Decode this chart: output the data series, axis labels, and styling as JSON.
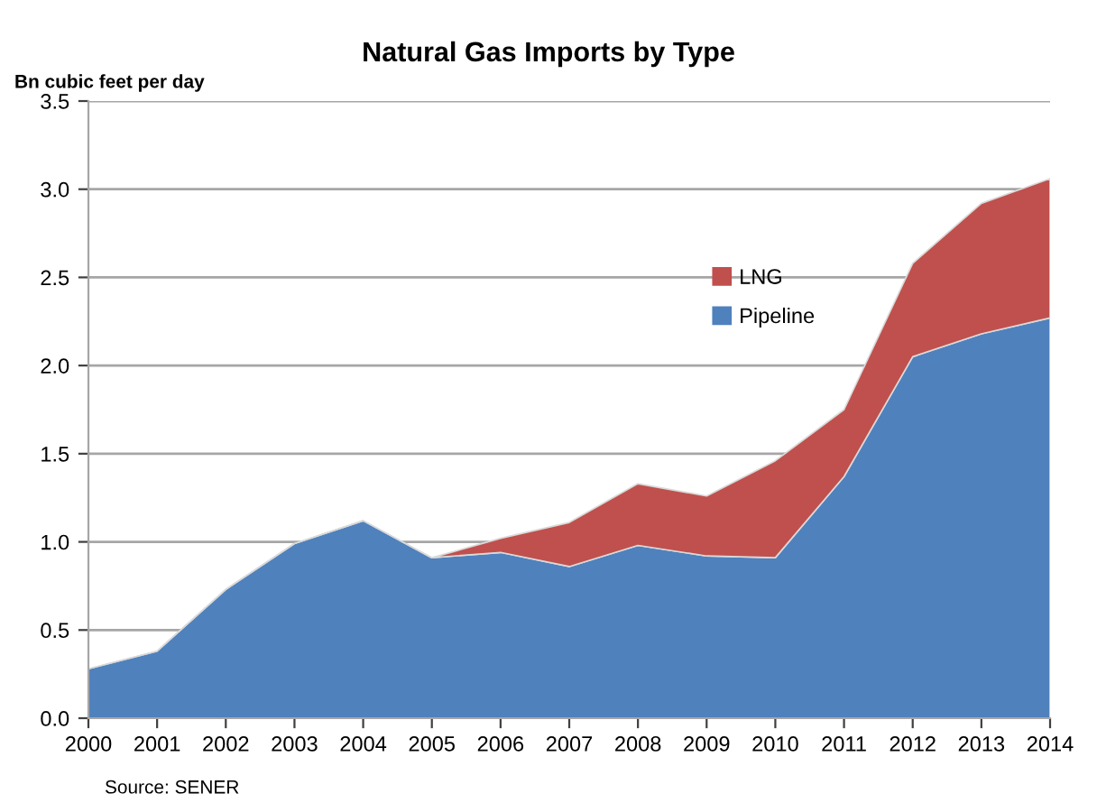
{
  "chart_data": {
    "type": "area",
    "stacked": true,
    "title": "Natural Gas Imports by Type",
    "ylabel": "Bn cubic feet per day",
    "categories": [
      "2000",
      "2001",
      "2002",
      "2003",
      "2004",
      "2005",
      "2006",
      "2007",
      "2008",
      "2009",
      "2010",
      "2011",
      "2012",
      "2013",
      "2014"
    ],
    "series": [
      {
        "name": "Pipeline",
        "color": "#4f81bd",
        "values": [
          0.28,
          0.38,
          0.73,
          0.99,
          1.12,
          0.91,
          0.94,
          0.86,
          0.98,
          0.92,
          0.91,
          1.37,
          2.05,
          2.18,
          2.27
        ]
      },
      {
        "name": "LNG",
        "color": "#c0504d",
        "values": [
          0,
          0,
          0,
          0,
          0,
          0,
          0.08,
          0.25,
          0.35,
          0.34,
          0.55,
          0.38,
          0.53,
          0.74,
          0.79
        ]
      }
    ],
    "ylim": [
      0,
      3.5
    ],
    "yticks": [
      {
        "value": 0,
        "label": "0.0"
      },
      {
        "value": 0.5,
        "label": "0.5"
      },
      {
        "value": 1,
        "label": "1.0"
      },
      {
        "value": 1.5,
        "label": "1.5"
      },
      {
        "value": 2,
        "label": "2.0"
      },
      {
        "value": 2.5,
        "label": "2.5"
      },
      {
        "value": 3,
        "label": "3.0"
      },
      {
        "value": 3.5,
        "label": "3.5"
      }
    ],
    "grid": "y",
    "legend": "top right",
    "annotations": [
      "Source: SENER"
    ]
  }
}
